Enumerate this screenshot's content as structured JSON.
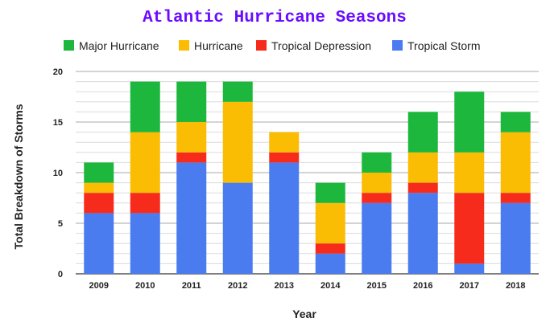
{
  "chart_data": {
    "type": "bar",
    "stacked": true,
    "title": "Atlantic Hurricane Seasons",
    "xlabel": "Year",
    "ylabel": "Total Breakdown of Storms",
    "categories": [
      "2009",
      "2010",
      "2011",
      "2012",
      "2013",
      "2014",
      "2015",
      "2016",
      "2017",
      "2018"
    ],
    "series": [
      {
        "name": "Tropical Storm",
        "color": "#4a7cf0",
        "values": [
          6,
          6,
          11,
          9,
          11,
          2,
          7,
          8,
          1,
          7
        ]
      },
      {
        "name": "Tropical Depression",
        "color": "#f72b1b",
        "values": [
          2,
          2,
          1,
          0,
          1,
          1,
          1,
          1,
          7,
          1
        ]
      },
      {
        "name": "Hurricane",
        "color": "#fbbc04",
        "values": [
          1,
          6,
          3,
          8,
          2,
          4,
          2,
          3,
          4,
          6
        ]
      },
      {
        "name": "Major Hurricane",
        "color": "#1db73d",
        "values": [
          2,
          5,
          4,
          2,
          0,
          2,
          2,
          4,
          6,
          2
        ]
      }
    ],
    "legend_order": [
      "Major Hurricane",
      "Hurricane",
      "Tropical Depression",
      "Tropical Storm"
    ],
    "ylim": [
      0,
      20
    ],
    "yticks": [
      0,
      5,
      10,
      15,
      20
    ],
    "minor_grid_step": 1,
    "grid": true,
    "legend_position": "top",
    "title_color": "#6a0dff"
  }
}
